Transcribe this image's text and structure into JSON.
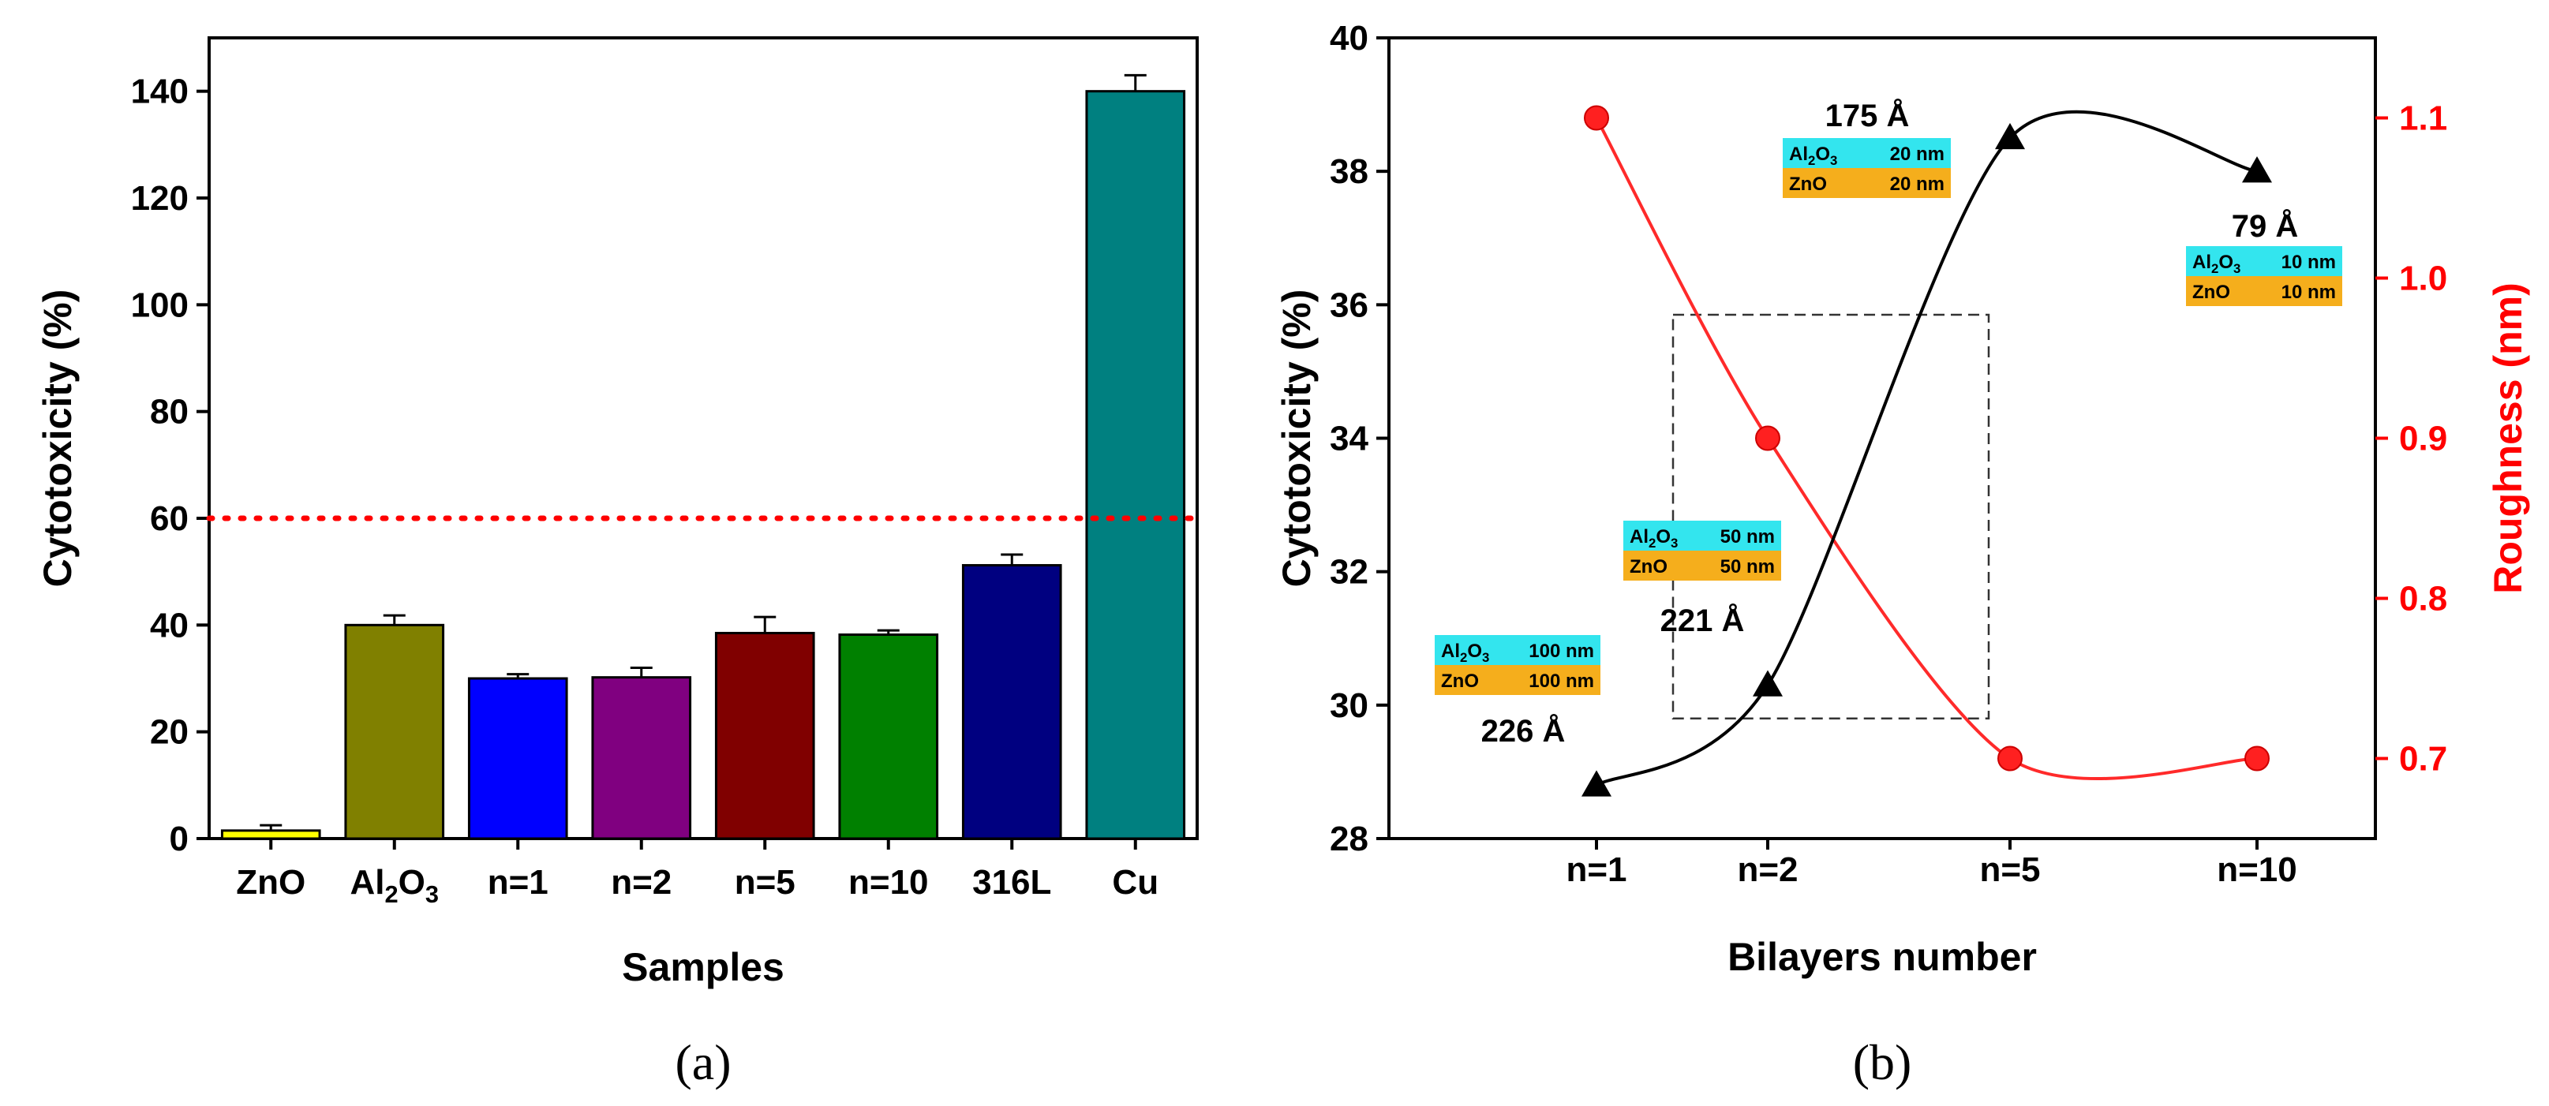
{
  "chart_data": [
    {
      "panel": "(a)",
      "type": "bar",
      "xlabel": "Samples",
      "ylabel": "Cytotoxicity (%)",
      "ylim": [
        0,
        150
      ],
      "yticks": [
        0,
        20,
        40,
        60,
        80,
        100,
        120,
        140
      ],
      "grid": false,
      "categories": [
        "ZnO",
        "Al2O3",
        "n=1",
        "n=2",
        "n=5",
        "n=10",
        "316L",
        "Cu"
      ],
      "values": [
        1.5,
        40,
        30,
        30.2,
        38.5,
        38.2,
        51.2,
        140
      ],
      "errors": [
        1,
        1.8,
        0.8,
        1.8,
        3,
        0.8,
        2,
        3
      ],
      "colors": [
        "#ffff00",
        "#808000",
        "#0000ff",
        "#800080",
        "#800000",
        "#008000",
        "#000080",
        "#008080"
      ],
      "threshold": {
        "value": 60,
        "color": "#ff0000",
        "style": "dotted"
      }
    },
    {
      "panel": "(b)",
      "type": "line",
      "xlabel": "Bilayers number",
      "ylabel": "Cytotoxicity (%)",
      "y2label": "Roughness (nm)",
      "categories": [
        "n=1",
        "n=2",
        "n=5",
        "n=10"
      ],
      "ylim": [
        28,
        40
      ],
      "yticks": [
        28,
        30,
        32,
        34,
        36,
        38,
        40
      ],
      "y2lim": [
        0.65,
        1.15
      ],
      "y2ticks": [
        0.7,
        0.8,
        0.9,
        1.0,
        1.1
      ],
      "y2tick_labels": [
        "0.7",
        "0.8",
        "0.9",
        "1.0",
        "1.1"
      ],
      "grid": false,
      "series": [
        {
          "axis": "left",
          "marker": "triangle",
          "color": "#000000",
          "values": [
            28.8,
            30.3,
            38.5,
            38.0
          ]
        },
        {
          "axis": "right",
          "marker": "circle",
          "color": "#ff0000",
          "values": [
            1.1,
            0.9,
            0.7,
            0.7
          ]
        }
      ],
      "annotations": [
        {
          "label": "226 Å",
          "layers": [
            [
              "Al2O3",
              "100 nm"
            ],
            [
              "ZnO",
              "100 nm"
            ]
          ]
        },
        {
          "label": "221 Å",
          "layers": [
            [
              "Al2O3",
              "50 nm"
            ],
            [
              "ZnO",
              "50 nm"
            ]
          ]
        },
        {
          "label": "175 Å",
          "layers": [
            [
              "Al2O3",
              "20 nm"
            ],
            [
              "ZnO",
              "20 nm"
            ]
          ]
        },
        {
          "label": "79 Å",
          "layers": [
            [
              "Al2O3",
              "10 nm"
            ],
            [
              "ZnO",
              "10 nm"
            ]
          ]
        }
      ],
      "layer_colors": {
        "Al2O3": "#33e5ee",
        "ZnO": "#f5ae1c"
      }
    }
  ]
}
